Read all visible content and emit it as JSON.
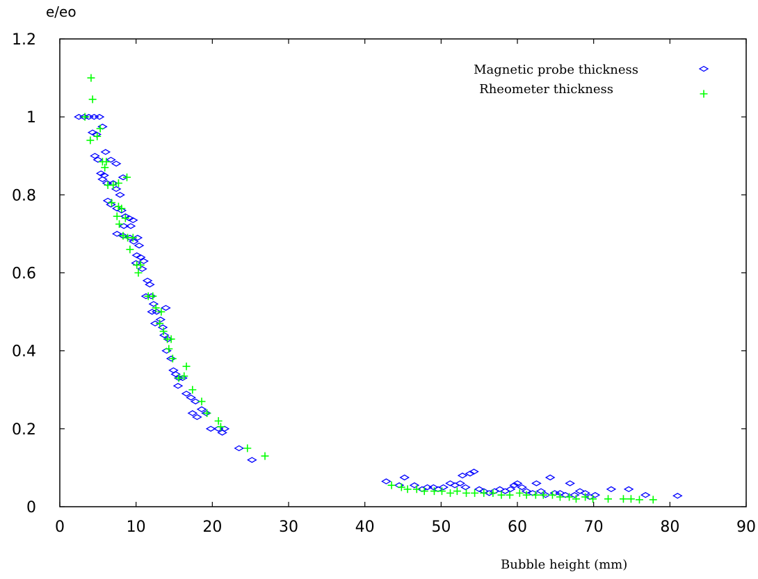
{
  "chart_data": {
    "type": "scatter",
    "title": "",
    "xlabel": "Bubble height (mm)",
    "ylabel": "e/eo",
    "xlim": [
      0,
      90
    ],
    "ylim": [
      0,
      1.2
    ],
    "xticks": [
      "0",
      "10",
      "20",
      "30",
      "40",
      "50",
      "60",
      "70",
      "80",
      "90"
    ],
    "yticks": [
      "0",
      "0.2",
      "0.4",
      "0.6",
      "0.8",
      "1",
      "1.2"
    ],
    "grid": false,
    "legend": "top-right",
    "series": [
      {
        "name": "Magnetic probe thickness",
        "marker": "diamond",
        "color": "#0000ff",
        "points": [
          [
            2.5,
            1.0
          ],
          [
            3.2,
            1.0
          ],
          [
            3.8,
            1.0
          ],
          [
            4.5,
            1.0
          ],
          [
            5.2,
            1.0
          ],
          [
            4.3,
            0.96
          ],
          [
            5.6,
            0.975
          ],
          [
            4.8,
            0.955
          ],
          [
            4.6,
            0.9
          ],
          [
            5.0,
            0.89
          ],
          [
            6.0,
            0.91
          ],
          [
            6.7,
            0.89
          ],
          [
            7.4,
            0.88
          ],
          [
            5.4,
            0.855
          ],
          [
            5.8,
            0.85
          ],
          [
            5.6,
            0.84
          ],
          [
            6.2,
            0.83
          ],
          [
            7.0,
            0.83
          ],
          [
            8.3,
            0.845
          ],
          [
            7.4,
            0.815
          ],
          [
            7.9,
            0.8
          ],
          [
            6.3,
            0.785
          ],
          [
            6.7,
            0.775
          ],
          [
            7.5,
            0.765
          ],
          [
            8.1,
            0.76
          ],
          [
            8.6,
            0.745
          ],
          [
            9.1,
            0.74
          ],
          [
            9.6,
            0.735
          ],
          [
            8.4,
            0.72
          ],
          [
            9.3,
            0.72
          ],
          [
            7.5,
            0.7
          ],
          [
            8.3,
            0.695
          ],
          [
            9.2,
            0.69
          ],
          [
            9.7,
            0.68
          ],
          [
            10.2,
            0.69
          ],
          [
            10.4,
            0.67
          ],
          [
            10.1,
            0.645
          ],
          [
            10.6,
            0.64
          ],
          [
            10.0,
            0.625
          ],
          [
            11.0,
            0.63
          ],
          [
            10.8,
            0.61
          ],
          [
            11.5,
            0.58
          ],
          [
            11.8,
            0.57
          ],
          [
            11.3,
            0.54
          ],
          [
            12.0,
            0.54
          ],
          [
            12.3,
            0.52
          ],
          [
            12.1,
            0.5
          ],
          [
            12.7,
            0.5
          ],
          [
            12.5,
            0.47
          ],
          [
            13.2,
            0.48
          ],
          [
            13.5,
            0.46
          ],
          [
            13.9,
            0.51
          ],
          [
            13.7,
            0.44
          ],
          [
            14.2,
            0.43
          ],
          [
            14.0,
            0.4
          ],
          [
            14.6,
            0.38
          ],
          [
            14.9,
            0.35
          ],
          [
            15.2,
            0.34
          ],
          [
            15.6,
            0.33
          ],
          [
            16.1,
            0.33
          ],
          [
            15.5,
            0.31
          ],
          [
            16.6,
            0.29
          ],
          [
            17.2,
            0.28
          ],
          [
            17.8,
            0.27
          ],
          [
            17.4,
            0.24
          ],
          [
            18.0,
            0.23
          ],
          [
            18.6,
            0.25
          ],
          [
            19.2,
            0.24
          ],
          [
            19.8,
            0.2
          ],
          [
            20.8,
            0.2
          ],
          [
            21.3,
            0.19
          ],
          [
            21.6,
            0.2
          ],
          [
            23.5,
            0.15
          ],
          [
            25.2,
            0.12
          ],
          [
            42.8,
            0.065
          ],
          [
            44.5,
            0.055
          ],
          [
            45.2,
            0.075
          ],
          [
            46.5,
            0.055
          ],
          [
            47.5,
            0.045
          ],
          [
            48.2,
            0.05
          ],
          [
            49.0,
            0.05
          ],
          [
            49.6,
            0.045
          ],
          [
            50.3,
            0.05
          ],
          [
            51.2,
            0.06
          ],
          [
            51.8,
            0.055
          ],
          [
            52.5,
            0.06
          ],
          [
            52.8,
            0.08
          ],
          [
            53.2,
            0.05
          ],
          [
            53.8,
            0.085
          ],
          [
            54.3,
            0.09
          ],
          [
            55.0,
            0.045
          ],
          [
            55.6,
            0.04
          ],
          [
            56.3,
            0.035
          ],
          [
            57.0,
            0.04
          ],
          [
            57.7,
            0.045
          ],
          [
            58.4,
            0.04
          ],
          [
            59.1,
            0.045
          ],
          [
            59.6,
            0.055
          ],
          [
            60.0,
            0.06
          ],
          [
            60.6,
            0.05
          ],
          [
            61.2,
            0.04
          ],
          [
            62.0,
            0.035
          ],
          [
            62.5,
            0.06
          ],
          [
            63.1,
            0.04
          ],
          [
            63.7,
            0.03
          ],
          [
            64.3,
            0.075
          ],
          [
            64.9,
            0.035
          ],
          [
            65.6,
            0.035
          ],
          [
            66.3,
            0.03
          ],
          [
            66.9,
            0.06
          ],
          [
            67.5,
            0.03
          ],
          [
            68.2,
            0.04
          ],
          [
            68.9,
            0.035
          ],
          [
            69.5,
            0.025
          ],
          [
            70.2,
            0.03
          ],
          [
            72.3,
            0.045
          ],
          [
            74.6,
            0.045
          ],
          [
            76.8,
            0.03
          ],
          [
            81.0,
            0.028
          ]
        ]
      },
      {
        "name": "Rheometer thickness",
        "marker": "plus",
        "color": "#00ff00",
        "points": [
          [
            4.1,
            1.1
          ],
          [
            4.3,
            1.045
          ],
          [
            3.3,
            1.0
          ],
          [
            4.0,
            0.94
          ],
          [
            4.9,
            0.95
          ],
          [
            5.3,
            0.97
          ],
          [
            5.6,
            0.885
          ],
          [
            6.1,
            0.885
          ],
          [
            5.9,
            0.87
          ],
          [
            6.3,
            0.825
          ],
          [
            7.0,
            0.825
          ],
          [
            7.7,
            0.83
          ],
          [
            8.8,
            0.845
          ],
          [
            6.8,
            0.78
          ],
          [
            7.7,
            0.77
          ],
          [
            8.1,
            0.765
          ],
          [
            7.5,
            0.745
          ],
          [
            8.6,
            0.74
          ],
          [
            7.8,
            0.725
          ],
          [
            8.3,
            0.695
          ],
          [
            8.9,
            0.69
          ],
          [
            9.6,
            0.69
          ],
          [
            9.2,
            0.66
          ],
          [
            10.1,
            0.62
          ],
          [
            10.6,
            0.62
          ],
          [
            10.3,
            0.6
          ],
          [
            11.6,
            0.54
          ],
          [
            12.2,
            0.54
          ],
          [
            12.6,
            0.51
          ],
          [
            13.3,
            0.5
          ],
          [
            13.1,
            0.47
          ],
          [
            13.6,
            0.45
          ],
          [
            14.1,
            0.43
          ],
          [
            14.6,
            0.43
          ],
          [
            14.3,
            0.405
          ],
          [
            14.8,
            0.38
          ],
          [
            15.6,
            0.33
          ],
          [
            16.3,
            0.335
          ],
          [
            16.6,
            0.36
          ],
          [
            17.4,
            0.3
          ],
          [
            18.6,
            0.27
          ],
          [
            19.3,
            0.24
          ],
          [
            20.8,
            0.22
          ],
          [
            21.1,
            0.205
          ],
          [
            24.6,
            0.15
          ],
          [
            26.9,
            0.13
          ],
          [
            43.5,
            0.055
          ],
          [
            44.8,
            0.05
          ],
          [
            45.6,
            0.045
          ],
          [
            46.8,
            0.045
          ],
          [
            47.8,
            0.04
          ],
          [
            49.1,
            0.04
          ],
          [
            50.1,
            0.04
          ],
          [
            51.2,
            0.035
          ],
          [
            52.1,
            0.04
          ],
          [
            53.3,
            0.035
          ],
          [
            54.4,
            0.035
          ],
          [
            55.6,
            0.035
          ],
          [
            56.8,
            0.035
          ],
          [
            57.9,
            0.03
          ],
          [
            59.0,
            0.03
          ],
          [
            60.3,
            0.035
          ],
          [
            61.2,
            0.03
          ],
          [
            62.4,
            0.03
          ],
          [
            63.4,
            0.03
          ],
          [
            64.6,
            0.03
          ],
          [
            65.6,
            0.025
          ],
          [
            66.8,
            0.025
          ],
          [
            67.7,
            0.02
          ],
          [
            68.9,
            0.025
          ],
          [
            69.9,
            0.02
          ],
          [
            71.9,
            0.02
          ],
          [
            73.9,
            0.02
          ],
          [
            74.9,
            0.02
          ],
          [
            76.0,
            0.018
          ],
          [
            77.8,
            0.018
          ]
        ]
      }
    ]
  }
}
